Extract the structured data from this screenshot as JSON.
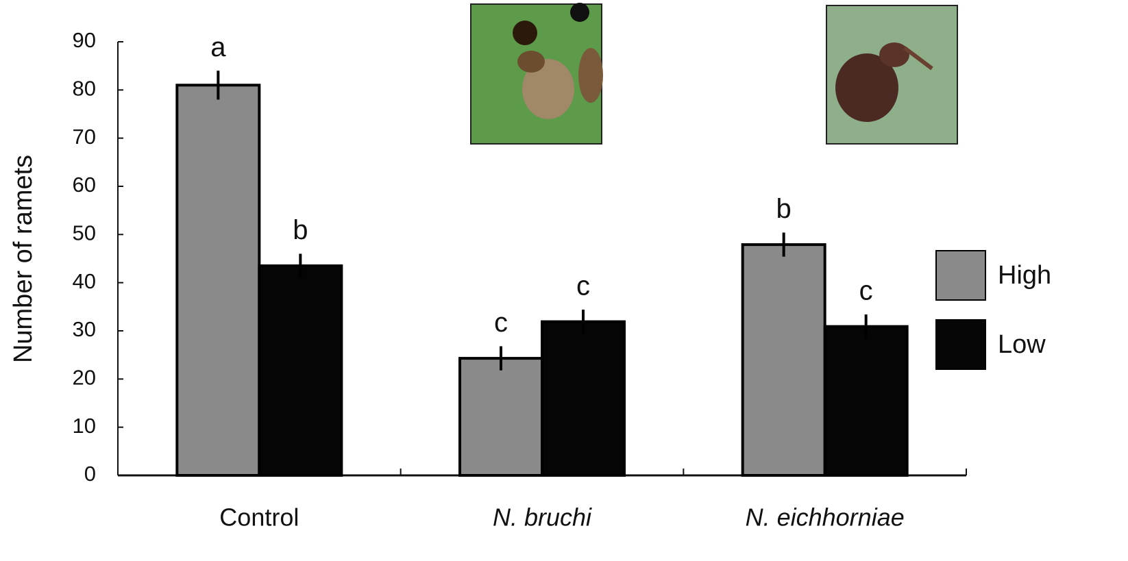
{
  "chart_data": {
    "type": "bar",
    "y_label": "Number of ramets",
    "categories": [
      "Control",
      "N. bruchi",
      "N. eichhorniae"
    ],
    "series": [
      {
        "name": "High",
        "color": "#8a8a8a",
        "values": [
          81,
          24.3,
          47.9
        ],
        "errors": [
          3,
          2.5,
          2.5
        ],
        "letters": [
          "a",
          "c",
          "b"
        ]
      },
      {
        "name": "Low",
        "color": "#050505",
        "values": [
          43.5,
          31.9,
          30.9
        ],
        "errors": [
          2.5,
          2.5,
          2.5
        ],
        "letters": [
          "b",
          "c",
          "c"
        ]
      }
    ],
    "ylim": [
      0,
      90
    ],
    "yticks": [
      0,
      10,
      20,
      30,
      40,
      50,
      60,
      70,
      80,
      90
    ],
    "legend": "right",
    "grid": false
  }
}
